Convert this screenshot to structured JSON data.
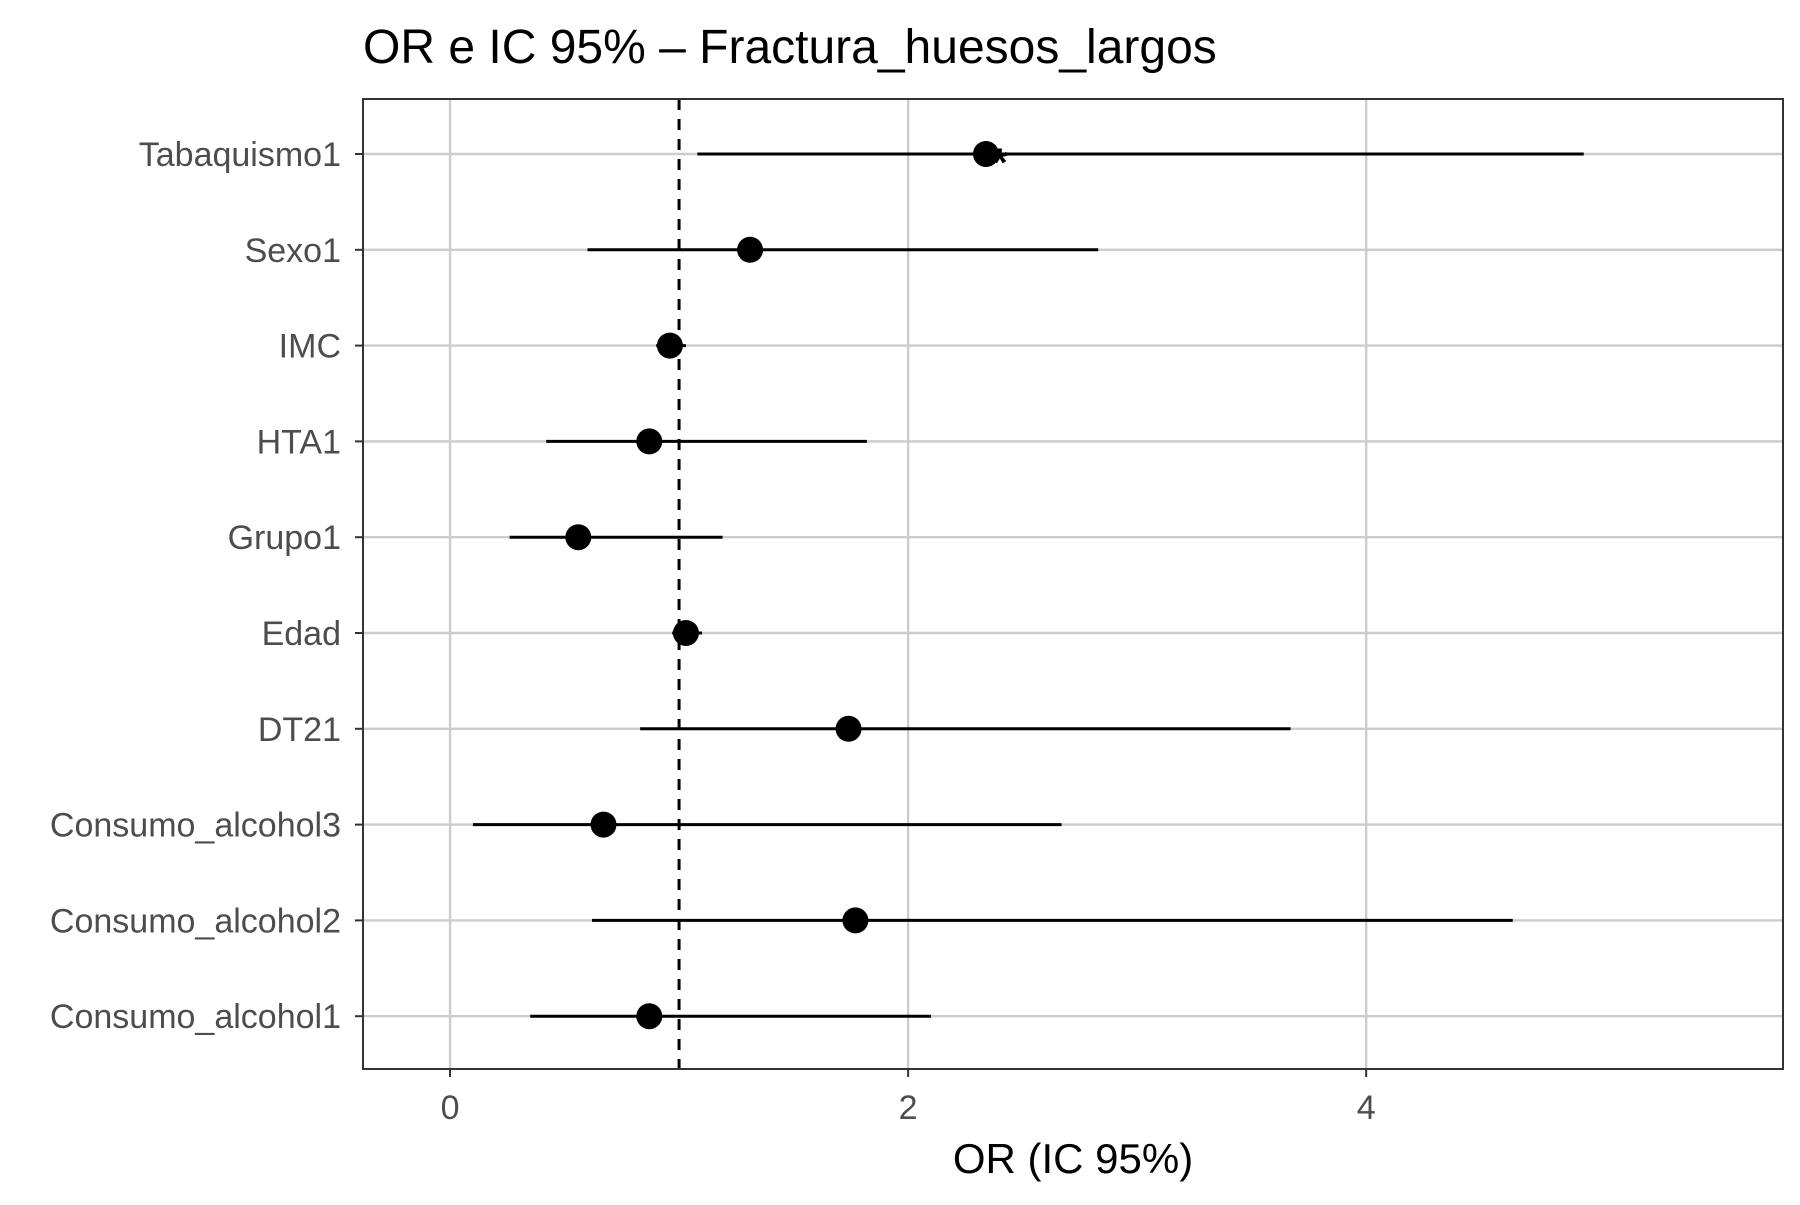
{
  "chart_data": {
    "type": "scatter",
    "title": "OR e IC 95% – Fractura_huesos_largos",
    "subtitle": "",
    "xlabel": "OR (IC 95%)",
    "ylabel": "",
    "xlim": [
      -0.38,
      5.82
    ],
    "xticks": [
      0,
      2,
      4
    ],
    "reference_line": 1,
    "grid": true,
    "legend": "none",
    "series": [
      {
        "points": [
          {
            "label": "Tabaquismo1",
            "or": 2.34,
            "lower": 1.08,
            "upper": 4.95,
            "annotation": "*"
          },
          {
            "label": "Sexo1",
            "or": 1.31,
            "lower": 0.6,
            "upper": 2.83,
            "annotation": ""
          },
          {
            "label": "IMC",
            "or": 0.96,
            "lower": 0.9,
            "upper": 1.03,
            "annotation": ""
          },
          {
            "label": "HTA1",
            "or": 0.87,
            "lower": 0.42,
            "upper": 1.82,
            "annotation": ""
          },
          {
            "label": "Grupo1",
            "or": 0.56,
            "lower": 0.26,
            "upper": 1.19,
            "annotation": ""
          },
          {
            "label": "Edad",
            "or": 1.03,
            "lower": 0.97,
            "upper": 1.1,
            "annotation": ""
          },
          {
            "label": "DT21",
            "or": 1.74,
            "lower": 0.83,
            "upper": 3.67,
            "annotation": ""
          },
          {
            "label": "Consumo_alcohol3",
            "or": 0.67,
            "lower": 0.1,
            "upper": 2.67,
            "annotation": ""
          },
          {
            "label": "Consumo_alcohol2",
            "or": 1.77,
            "lower": 0.62,
            "upper": 4.64,
            "annotation": ""
          },
          {
            "label": "Consumo_alcohol1",
            "or": 0.87,
            "lower": 0.35,
            "upper": 2.1,
            "annotation": ""
          }
        ]
      }
    ]
  },
  "colors": {
    "background": "#ffffff",
    "grid": "#cccccc",
    "axis": "#333333",
    "ink": "#000000",
    "tick_text": "#4d4d4d"
  }
}
